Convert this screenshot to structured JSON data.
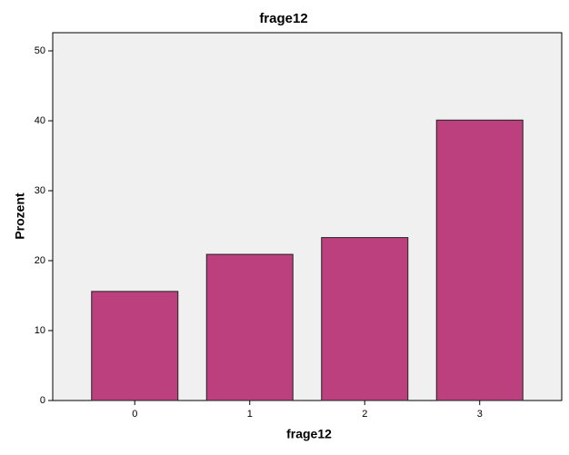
{
  "chart_data": {
    "type": "bar",
    "title": "frage12",
    "x_label": "frage12",
    "y_label": "Prozent",
    "categories": [
      "0",
      "1",
      "2",
      "3"
    ],
    "values": [
      15.6,
      20.9,
      23.3,
      40.1
    ],
    "color": "#bc3f7e",
    "ylim": [
      0,
      52.6
    ],
    "yticks": [
      0,
      10,
      20,
      30,
      40,
      50
    ],
    "grid": false
  }
}
